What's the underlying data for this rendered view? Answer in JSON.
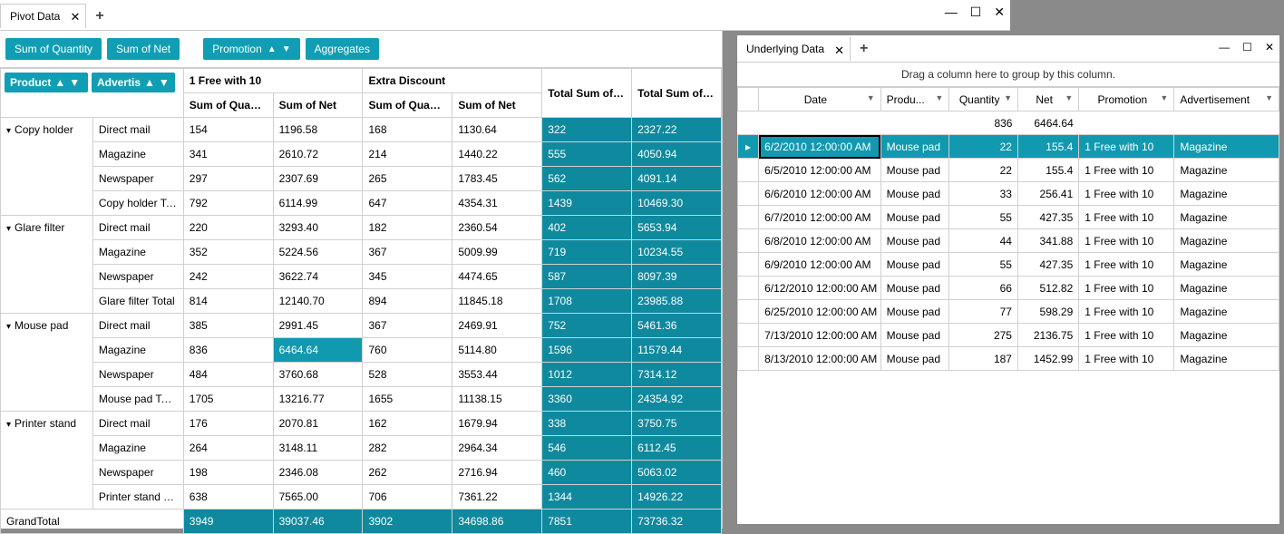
{
  "colors": {
    "teal": "#119eb4",
    "tealCell": "#0f899e",
    "tealSel": "#1199af"
  },
  "chrome": {
    "tab_title": "Pivot Data",
    "min": "—",
    "max": "☐",
    "close": "✕",
    "plus": "+"
  },
  "toolbar": {
    "sumQty": "Sum of Quantity",
    "sumNet": "Sum of Net",
    "promotion": "Promotion",
    "aggregates": "Aggregates",
    "product": "Product",
    "advertis": "Advertis"
  },
  "pivotHeaders": {
    "promo1": "1 Free with 10",
    "promo2": "Extra Discount",
    "totalQty": "Total Sum of Qua",
    "totalNet": "Total Sum of Net",
    "sumQty": "Sum of Quantity",
    "sumNet": "Sum of Net"
  },
  "pivotGroups": [
    {
      "name": "Copy holder",
      "rows": [
        {
          "adv": "Direct mail",
          "q1": "154",
          "n1": "1196.58",
          "q2": "168",
          "n2": "1130.64",
          "tq": "322",
          "tn": "2327.22"
        },
        {
          "adv": "Magazine",
          "q1": "341",
          "n1": "2610.72",
          "q2": "214",
          "n2": "1440.22",
          "tq": "555",
          "tn": "4050.94"
        },
        {
          "adv": "Newspaper",
          "q1": "297",
          "n1": "2307.69",
          "q2": "265",
          "n2": "1783.45",
          "tq": "562",
          "tn": "4091.14"
        }
      ],
      "total": {
        "adv": "Copy holder Total",
        "q1": "792",
        "n1": "6114.99",
        "q2": "647",
        "n2": "4354.31",
        "tq": "1439",
        "tn": "10469.30"
      }
    },
    {
      "name": "Glare filter",
      "rows": [
        {
          "adv": "Direct mail",
          "q1": "220",
          "n1": "3293.40",
          "q2": "182",
          "n2": "2360.54",
          "tq": "402",
          "tn": "5653.94"
        },
        {
          "adv": "Magazine",
          "q1": "352",
          "n1": "5224.56",
          "q2": "367",
          "n2": "5009.99",
          "tq": "719",
          "tn": "10234.55"
        },
        {
          "adv": "Newspaper",
          "q1": "242",
          "n1": "3622.74",
          "q2": "345",
          "n2": "4474.65",
          "tq": "587",
          "tn": "8097.39"
        }
      ],
      "total": {
        "adv": "Glare filter Total",
        "q1": "814",
        "n1": "12140.70",
        "q2": "894",
        "n2": "11845.18",
        "tq": "1708",
        "tn": "23985.88"
      }
    },
    {
      "name": "Mouse pad",
      "rows": [
        {
          "adv": "Direct mail",
          "q1": "385",
          "n1": "2991.45",
          "q2": "367",
          "n2": "2469.91",
          "tq": "752",
          "tn": "5461.36"
        },
        {
          "adv": "Magazine",
          "q1": "836",
          "n1": "6464.64",
          "q2": "760",
          "n2": "5114.80",
          "tq": "1596",
          "tn": "11579.44",
          "selected": true
        },
        {
          "adv": "Newspaper",
          "q1": "484",
          "n1": "3760.68",
          "q2": "528",
          "n2": "3553.44",
          "tq": "1012",
          "tn": "7314.12"
        }
      ],
      "total": {
        "adv": "Mouse pad Total",
        "q1": "1705",
        "n1": "13216.77",
        "q2": "1655",
        "n2": "11138.15",
        "tq": "3360",
        "tn": "24354.92"
      }
    },
    {
      "name": "Printer stand",
      "rows": [
        {
          "adv": "Direct mail",
          "q1": "176",
          "n1": "2070.81",
          "q2": "162",
          "n2": "1679.94",
          "tq": "338",
          "tn": "3750.75"
        },
        {
          "adv": "Magazine",
          "q1": "264",
          "n1": "3148.11",
          "q2": "282",
          "n2": "2964.34",
          "tq": "546",
          "tn": "6112.45"
        },
        {
          "adv": "Newspaper",
          "q1": "198",
          "n1": "2346.08",
          "q2": "262",
          "n2": "2716.94",
          "tq": "460",
          "tn": "5063.02"
        }
      ],
      "total": {
        "adv": "Printer stand Total",
        "q1": "638",
        "n1": "7565.00",
        "q2": "706",
        "n2": "7361.22",
        "tq": "1344",
        "tn": "14926.22"
      }
    }
  ],
  "grandTotal": {
    "label": "GrandTotal",
    "q1": "3949",
    "n1": "39037.46",
    "q2": "3902",
    "n2": "34698.86",
    "tq": "7851",
    "tn": "73736.32"
  },
  "underlying": {
    "title": "Underlying Data",
    "groupHint": "Drag a column here to group by this column.",
    "cols": {
      "date": "Date",
      "product": "Produ...",
      "qty": "Quantity",
      "net": "Net",
      "promo": "Promotion",
      "adv": "Advertisement"
    },
    "sum": {
      "qty": "836",
      "net": "6464.64"
    },
    "rows": [
      {
        "date": "6/2/2010 12:00:00 AM",
        "product": "Mouse pad",
        "qty": "22",
        "net": "155.4",
        "promo": "1 Free with 10",
        "adv": "Magazine",
        "selected": true
      },
      {
        "date": "6/5/2010 12:00:00 AM",
        "product": "Mouse pad",
        "qty": "22",
        "net": "155.4",
        "promo": "1 Free with 10",
        "adv": "Magazine"
      },
      {
        "date": "6/6/2010 12:00:00 AM",
        "product": "Mouse pad",
        "qty": "33",
        "net": "256.41",
        "promo": "1 Free with 10",
        "adv": "Magazine"
      },
      {
        "date": "6/7/2010 12:00:00 AM",
        "product": "Mouse pad",
        "qty": "55",
        "net": "427.35",
        "promo": "1 Free with 10",
        "adv": "Magazine"
      },
      {
        "date": "6/8/2010 12:00:00 AM",
        "product": "Mouse pad",
        "qty": "44",
        "net": "341.88",
        "promo": "1 Free with 10",
        "adv": "Magazine"
      },
      {
        "date": "6/9/2010 12:00:00 AM",
        "product": "Mouse pad",
        "qty": "55",
        "net": "427.35",
        "promo": "1 Free with 10",
        "adv": "Magazine"
      },
      {
        "date": "6/12/2010 12:00:00 AM",
        "product": "Mouse pad",
        "qty": "66",
        "net": "512.82",
        "promo": "1 Free with 10",
        "adv": "Magazine"
      },
      {
        "date": "6/25/2010 12:00:00 AM",
        "product": "Mouse pad",
        "qty": "77",
        "net": "598.29",
        "promo": "1 Free with 10",
        "adv": "Magazine"
      },
      {
        "date": "7/13/2010 12:00:00 AM",
        "product": "Mouse pad",
        "qty": "275",
        "net": "2136.75",
        "promo": "1 Free with 10",
        "adv": "Magazine"
      },
      {
        "date": "8/13/2010 12:00:00 AM",
        "product": "Mouse pad",
        "qty": "187",
        "net": "1452.99",
        "promo": "1 Free with 10",
        "adv": "Magazine"
      }
    ]
  }
}
